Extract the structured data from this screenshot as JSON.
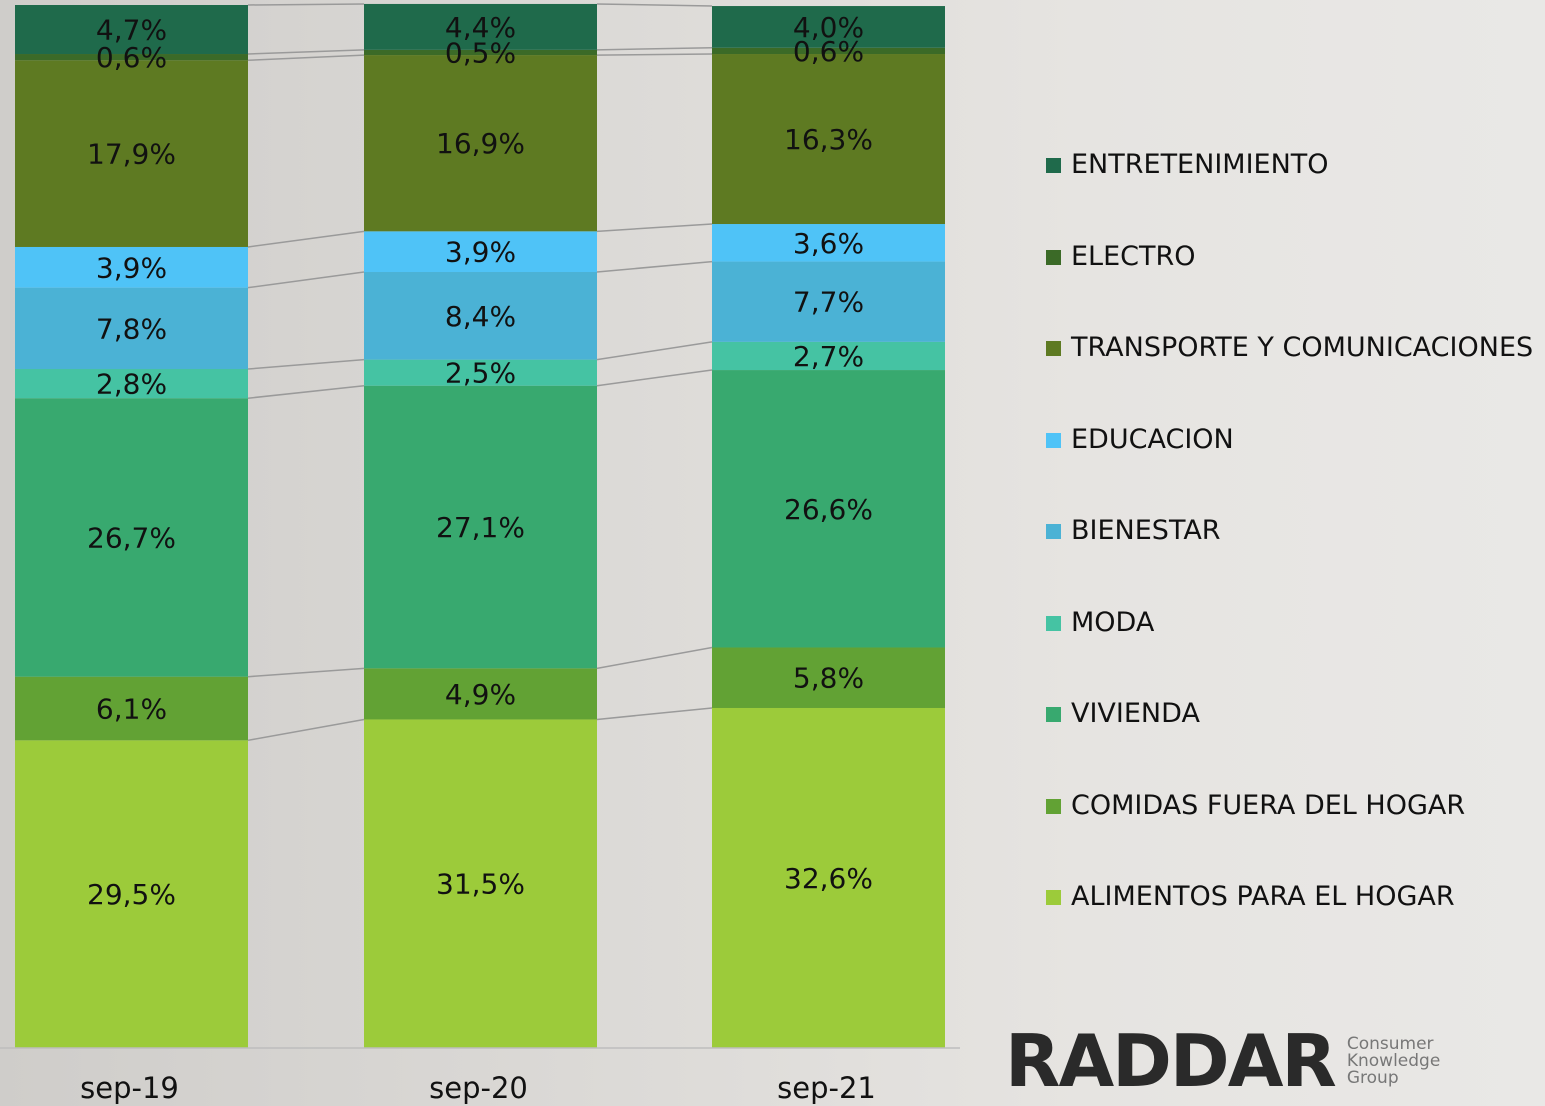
{
  "chart_data": {
    "type": "stacked_bar",
    "categories": [
      "sep-19",
      "sep-20",
      "sep-21"
    ],
    "ylim": [
      0,
      100
    ],
    "legend": "right",
    "series": [
      {
        "name": "ENTRETENIMIENTO",
        "color": "#1f6a4b",
        "values": [
          4.7,
          4.4,
          4.0
        ],
        "value_labels": [
          "4,7%",
          "4,4%",
          "4,0%"
        ]
      },
      {
        "name": "ELECTRO",
        "color": "#3b6a27",
        "values": [
          0.6,
          0.5,
          0.6
        ],
        "value_labels": [
          "0,6%",
          "0,5%",
          "0,6%"
        ]
      },
      {
        "name": "TRANSPORTE Y COMUNICACIONES",
        "color": "#5e7a22",
        "values": [
          17.9,
          16.9,
          16.3
        ],
        "value_labels": [
          "17,9%",
          "16,9%",
          "16,3%"
        ]
      },
      {
        "name": "EDUCACION",
        "color": "#4fc3f7",
        "values": [
          3.9,
          3.9,
          3.6
        ],
        "value_labels": [
          "3,9%",
          "3,9%",
          "3,6%"
        ]
      },
      {
        "name": "BIENESTAR",
        "color": "#4bb2d5",
        "values": [
          7.8,
          8.4,
          7.7
        ],
        "value_labels": [
          "7,8%",
          "8,4%",
          "7,7%"
        ]
      },
      {
        "name": "MODA",
        "color": "#45c3a3",
        "values": [
          2.8,
          2.5,
          2.7
        ],
        "value_labels": [
          "2,8%",
          "2,5%",
          "2,7%"
        ]
      },
      {
        "name": "VIVIENDA",
        "color": "#38a96f",
        "values": [
          26.7,
          27.1,
          26.6
        ],
        "value_labels": [
          "26,7%",
          "27,1%",
          "26,6%"
        ]
      },
      {
        "name": "COMIDAS FUERA DEL HOGAR",
        "color": "#62a234",
        "values": [
          6.1,
          4.9,
          5.8
        ],
        "value_labels": [
          "6,1%",
          "4,9%",
          "5,8%"
        ]
      },
      {
        "name": "ALIMENTOS PARA EL HOGAR",
        "color": "#9ccb3a",
        "values": [
          29.5,
          31.5,
          32.6
        ],
        "value_labels": [
          "29,5%",
          "31,5%",
          "32,6%"
        ]
      }
    ]
  },
  "logo": {
    "brand": "RADDAR",
    "tagline": [
      "Consumer",
      "Knowledge",
      "Group"
    ]
  }
}
